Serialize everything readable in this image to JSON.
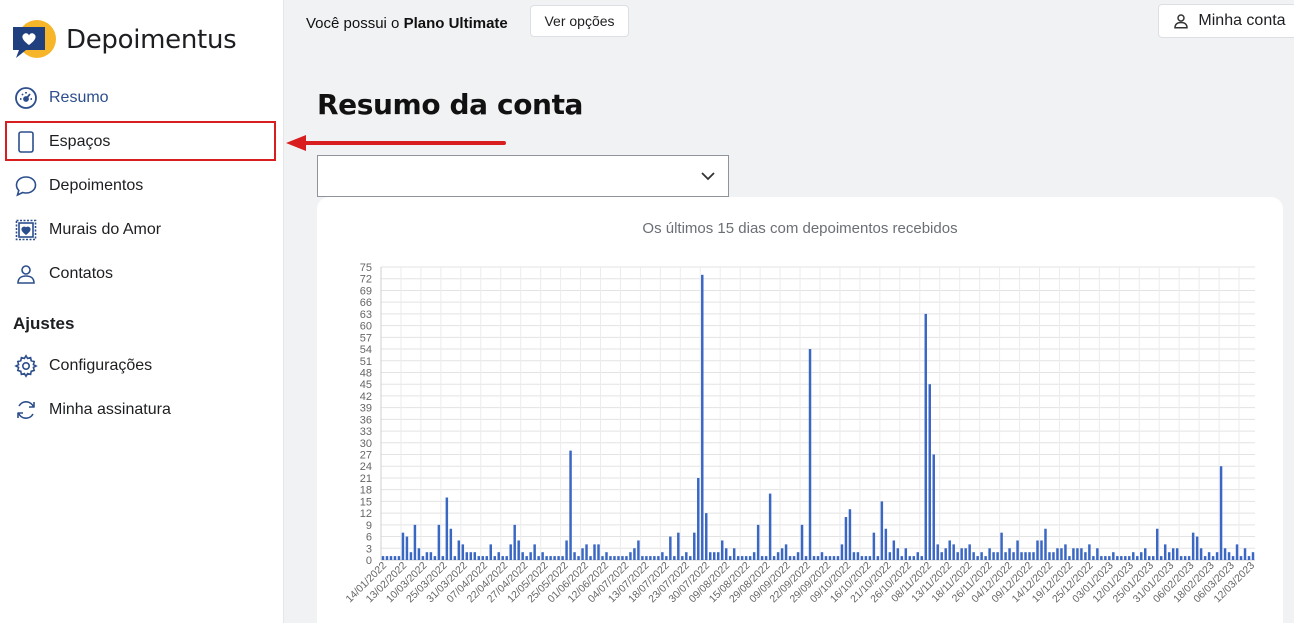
{
  "brand": {
    "name": "Depoimentus"
  },
  "sidebar": {
    "items": [
      {
        "label": "Resumo",
        "icon": "dashboard-icon"
      },
      {
        "label": "Espaços",
        "icon": "tablet-icon"
      },
      {
        "label": "Depoimentos",
        "icon": "chat-bubble-icon"
      },
      {
        "label": "Murais do Amor",
        "icon": "heart-frame-icon"
      },
      {
        "label": "Contatos",
        "icon": "user-icon"
      }
    ],
    "section_heading": "Ajustes",
    "settings_items": [
      {
        "label": "Configurações",
        "icon": "gear-icon"
      },
      {
        "label": "Minha assinatura",
        "icon": "refresh-icon"
      }
    ]
  },
  "header": {
    "plan_prefix": "Você possui o ",
    "plan_name": "Plano Ultimate",
    "options_button": "Ver opções",
    "account_button": "Minha conta"
  },
  "main": {
    "title": "Resumo da conta",
    "select_value": ""
  },
  "colors": {
    "accent": "#2c4e8c",
    "bar": "#3a67c4",
    "highlight": "#d81e1e"
  },
  "chart_data": {
    "type": "bar",
    "title": "Os últimos 15 dias com depoimentos recebidos",
    "ylim": [
      0,
      75
    ],
    "yticks": [
      0,
      3,
      6,
      9,
      12,
      15,
      18,
      21,
      24,
      27,
      30,
      33,
      36,
      39,
      42,
      45,
      48,
      51,
      54,
      57,
      60,
      63,
      66,
      69,
      72,
      75
    ],
    "tick_labels": [
      "14/01/2022",
      "13/02/2022",
      "10/03/2022",
      "25/03/2022",
      "31/03/2022",
      "07/04/2022",
      "22/04/2022",
      "27/04/2022",
      "12/05/2022",
      "25/05/2022",
      "01/06/2022",
      "12/06/2022",
      "04/07/2022",
      "13/07/2022",
      "18/07/2022",
      "23/07/2022",
      "30/07/2022",
      "09/08/2022",
      "15/08/2022",
      "29/08/2022",
      "09/09/2022",
      "22/09/2022",
      "29/09/2022",
      "09/10/2022",
      "16/10/2022",
      "21/10/2022",
      "26/10/2022",
      "08/11/2022",
      "13/11/2022",
      "18/11/2022",
      "26/11/2022",
      "04/12/2022",
      "09/12/2022",
      "14/12/2022",
      "19/12/2022",
      "25/12/2022",
      "03/01/2023",
      "12/01/2023",
      "25/01/2023",
      "31/01/2023",
      "06/02/2023",
      "18/02/2023",
      "06/03/2023",
      "12/03/2023"
    ],
    "values": [
      1,
      1,
      1,
      1,
      1,
      7,
      6,
      2,
      9,
      3,
      1,
      2,
      2,
      1,
      9,
      1,
      16,
      8,
      1,
      5,
      4,
      2,
      2,
      2,
      1,
      1,
      1,
      4,
      1,
      2,
      1,
      1,
      4,
      9,
      5,
      2,
      1,
      2,
      4,
      1,
      2,
      1,
      1,
      1,
      1,
      1,
      5,
      28,
      2,
      1,
      3,
      4,
      1,
      4,
      4,
      1,
      2,
      1,
      1,
      1,
      1,
      1,
      2,
      3,
      5,
      1,
      1,
      1,
      1,
      1,
      2,
      1,
      6,
      1,
      7,
      1,
      2,
      1,
      7,
      21,
      73,
      12,
      2,
      2,
      2,
      5,
      3,
      1,
      3,
      1,
      1,
      1,
      1,
      2,
      9,
      1,
      1,
      17,
      1,
      2,
      3,
      4,
      1,
      1,
      2,
      9,
      1,
      54,
      1,
      1,
      2,
      1,
      1,
      1,
      1,
      4,
      11,
      13,
      2,
      2,
      1,
      1,
      1,
      7,
      1,
      15,
      8,
      2,
      5,
      3,
      1,
      3,
      1,
      1,
      2,
      1,
      63,
      45,
      27,
      4,
      2,
      3,
      5,
      4,
      2,
      3,
      3,
      4,
      2,
      1,
      2,
      1,
      3,
      2,
      2,
      7,
      2,
      3,
      2,
      5,
      2,
      2,
      2,
      2,
      5,
      5,
      8,
      2,
      2,
      3,
      3,
      4,
      1,
      3,
      3,
      3,
      2,
      4,
      1,
      3,
      1,
      1,
      1,
      2,
      1,
      1,
      1,
      1,
      2,
      1,
      2,
      3,
      1,
      1,
      8,
      1,
      4,
      2,
      3,
      3,
      1,
      1,
      1,
      7,
      6,
      3,
      1,
      2,
      1,
      2,
      24,
      3,
      2,
      1,
      4,
      1,
      3,
      1,
      2
    ]
  }
}
